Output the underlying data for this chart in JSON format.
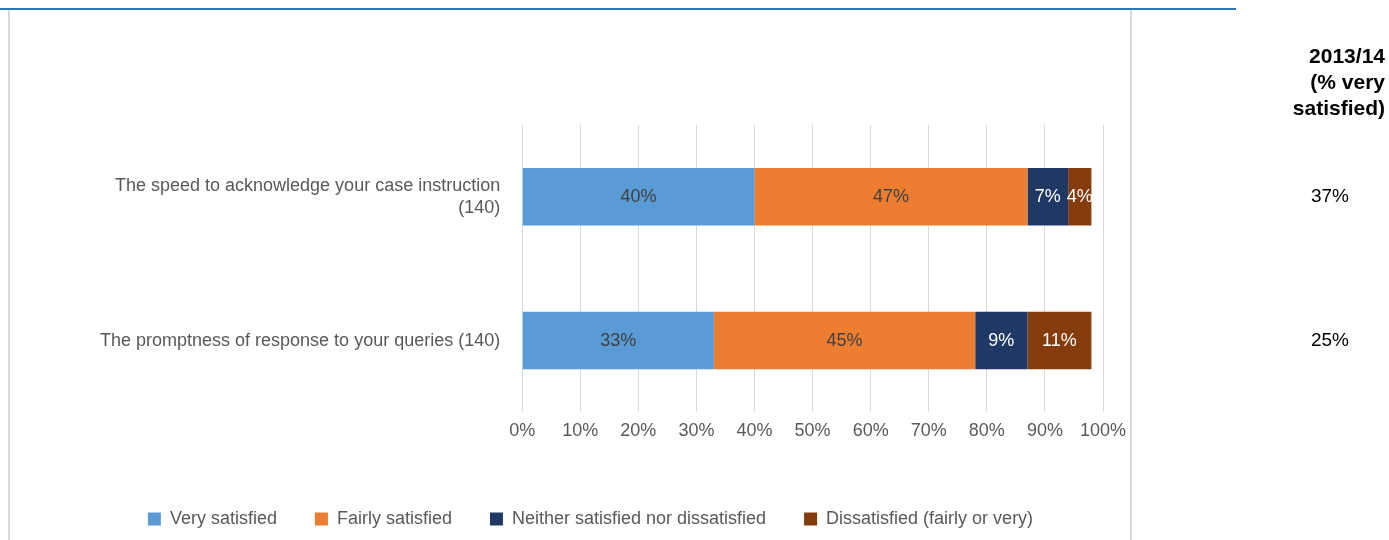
{
  "chart_data": {
    "type": "bar",
    "orientation": "horizontal",
    "stacked": true,
    "categories": [
      "The speed to acknowledge your case instruction (140)",
      "The promptness of response to your queries (140)"
    ],
    "series": [
      {
        "name": "Very satisfied",
        "color": "#5b9bd5",
        "values": [
          40,
          33
        ],
        "value_labels": [
          "40%",
          "33%"
        ]
      },
      {
        "name": "Fairly satisfied",
        "color": "#ed7d31",
        "values": [
          47,
          45
        ],
        "value_labels": [
          "47%",
          "45%"
        ]
      },
      {
        "name": "Neither satisfied nor dissatisfied",
        "color": "#203864",
        "values": [
          7,
          9
        ],
        "value_labels": [
          "7%",
          "9%"
        ]
      },
      {
        "name": "Dissatisfied (fairly or very)",
        "color": "#843c0c",
        "values": [
          4,
          11
        ],
        "value_labels": [
          "4%",
          "11%"
        ]
      }
    ],
    "xlim": [
      0,
      100
    ],
    "xticks": [
      {
        "value": 0,
        "label": "0%"
      },
      {
        "value": 10,
        "label": "10%"
      },
      {
        "value": 20,
        "label": "20%"
      },
      {
        "value": 30,
        "label": "30%"
      },
      {
        "value": 40,
        "label": "40%"
      },
      {
        "value": 50,
        "label": "50%"
      },
      {
        "value": 60,
        "label": "60%"
      },
      {
        "value": 70,
        "label": "70%"
      },
      {
        "value": 80,
        "label": "80%"
      },
      {
        "value": 90,
        "label": "90%"
      },
      {
        "value": 100,
        "label": "100%"
      }
    ],
    "grid": "x",
    "legend": "bottom",
    "annotations": [
      "2013/14 (% very satisfied)",
      "37%",
      "25%"
    ]
  }
}
